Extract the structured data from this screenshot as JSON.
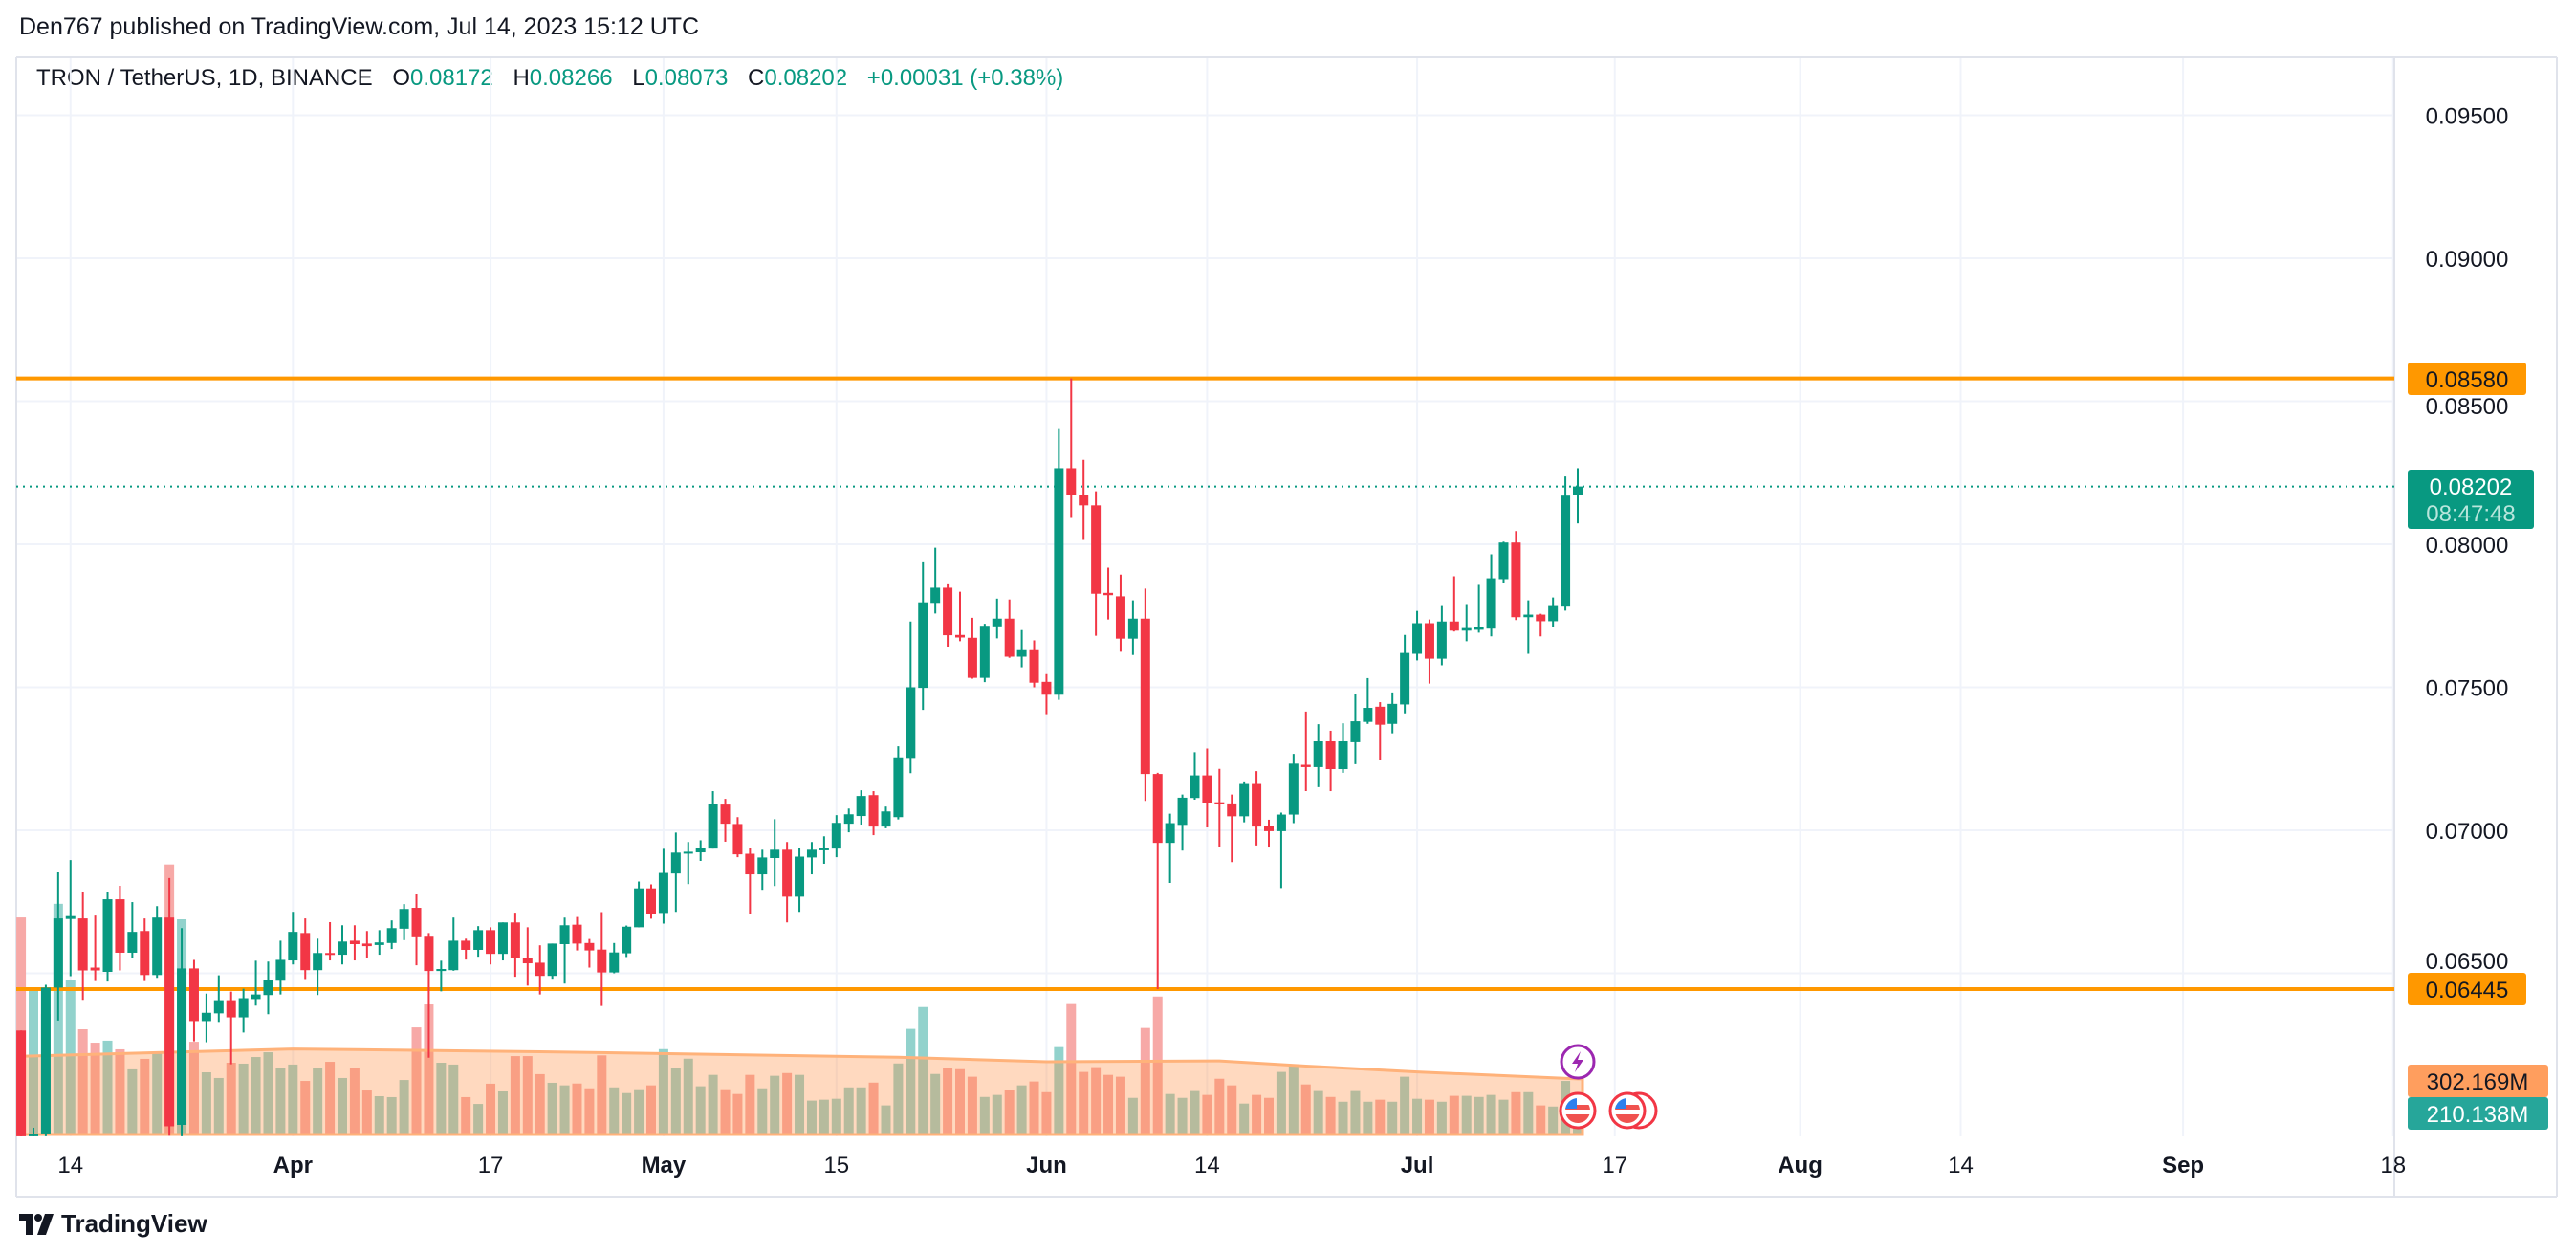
{
  "header": {
    "published": "Den767 published on TradingView.com, Jul 14, 2023 15:12 UTC"
  },
  "legend": {
    "symbol": "TRON / TetherUS, 1D, BINANCE",
    "open_label": "O",
    "open": "0.08172",
    "high_label": "H",
    "high": "0.08266",
    "low_label": "L",
    "low": "0.08073",
    "close_label": "C",
    "close": "0.08202",
    "change": "+0.00031 (+0.38%)"
  },
  "price_axis": {
    "ticks": [
      "0.09500",
      "0.09000",
      "0.08500",
      "0.08000",
      "0.07500",
      "0.07000",
      "0.06500"
    ],
    "resistance_label": "0.08580",
    "support_label": "0.06445",
    "last_price_label": "0.08202",
    "countdown_label": "08:47:48",
    "volume_ma_label": "302.169M",
    "volume_label": "210.138M"
  },
  "time_axis": {
    "ticks": [
      {
        "label": "14",
        "date": "2023-03-14",
        "bold": false
      },
      {
        "label": "Apr",
        "date": "2023-04-01",
        "bold": true
      },
      {
        "label": "17",
        "date": "2023-04-17",
        "bold": false
      },
      {
        "label": "May",
        "date": "2023-05-01",
        "bold": true
      },
      {
        "label": "15",
        "date": "2023-05-15",
        "bold": false
      },
      {
        "label": "Jun",
        "date": "2023-06-01",
        "bold": true
      },
      {
        "label": "14",
        "date": "2023-06-14",
        "bold": false
      },
      {
        "label": "Jul",
        "date": "2023-07-01",
        "bold": true
      },
      {
        "label": "17",
        "date": "2023-07-17",
        "bold": false
      },
      {
        "label": "Aug",
        "date": "2023-08-01",
        "bold": true
      },
      {
        "label": "14",
        "date": "2023-08-14",
        "bold": false
      },
      {
        "label": "Sep",
        "date": "2023-09-01",
        "bold": true
      },
      {
        "label": "18",
        "date": "2023-09-18",
        "bold": false
      }
    ]
  },
  "colors": {
    "up": "#089981",
    "down": "#f23645",
    "volume_up": "#92d2cc",
    "volume_down": "#f7a9a7",
    "level_line": "#ff9800",
    "volume_ma": "#ff9e5e",
    "volume_label": "#26a69a",
    "grid": "#f0f3fa",
    "text": "#131722"
  },
  "footer": {
    "brand": "TradingView",
    "logo_icon": "tradingview-logo-icon"
  },
  "event_icons": [
    "lightning-icon",
    "us-flag-icon",
    "us-flag-icon",
    "us-flag-icon"
  ],
  "chart_data": {
    "type": "candlestick",
    "title": "TRON / TetherUS, 1D, BINANCE",
    "ylim": [
      0.059,
      0.097
    ],
    "xlim": [
      "2023-03-10",
      "2023-09-25"
    ],
    "grid": true,
    "horizontal_levels": [
      0.0858,
      0.06445
    ],
    "last_price": 0.08202,
    "columns": [
      "date",
      "open",
      "high",
      "low",
      "close",
      "volume_M"
    ],
    "rows": [
      [
        "2023-03-10",
        0.063,
        0.063,
        0.059,
        0.0593,
        1180
      ],
      [
        "2023-03-11",
        0.0593,
        0.0596,
        0.0592,
        0.0594,
        800
      ],
      [
        "2023-03-12",
        0.0594,
        0.0646,
        0.0593,
        0.0645,
        655
      ],
      [
        "2023-03-13",
        0.0645,
        0.06853,
        0.06335,
        0.06692,
        1254
      ],
      [
        "2023-03-14",
        0.0669,
        0.06896,
        0.0649,
        0.067,
        841
      ],
      [
        "2023-03-15",
        0.06692,
        0.06783,
        0.06407,
        0.0651,
        572
      ],
      [
        "2023-03-16",
        0.0652,
        0.06702,
        0.06473,
        0.0651,
        499
      ],
      [
        "2023-03-17",
        0.06505,
        0.06783,
        0.06471,
        0.06759,
        510
      ],
      [
        "2023-03-18",
        0.06759,
        0.06806,
        0.0651,
        0.06572,
        463
      ],
      [
        "2023-03-19",
        0.06572,
        0.06749,
        0.06554,
        0.06645,
        354
      ],
      [
        "2023-03-20",
        0.06648,
        0.06692,
        0.06473,
        0.06494,
        411
      ],
      [
        "2023-03-21",
        0.06494,
        0.06735,
        0.06484,
        0.06695,
        442
      ],
      [
        "2023-03-22",
        0.06695,
        0.06833,
        0.05932,
        0.05965,
        1468
      ],
      [
        "2023-03-23",
        0.0597,
        0.06658,
        0.0593,
        0.06517,
        1170
      ],
      [
        "2023-03-24",
        0.06517,
        0.06547,
        0.06262,
        0.06333,
        504
      ],
      [
        "2023-03-25",
        0.06333,
        0.06429,
        0.06259,
        0.06362,
        338
      ],
      [
        "2023-03-26",
        0.0636,
        0.06493,
        0.0633,
        0.06406,
        307
      ],
      [
        "2023-03-27",
        0.06406,
        0.06436,
        0.06182,
        0.06346,
        390
      ],
      [
        "2023-03-28",
        0.06346,
        0.06446,
        0.06293,
        0.06413,
        385
      ],
      [
        "2023-03-29",
        0.0641,
        0.06544,
        0.06387,
        0.06426,
        421
      ],
      [
        "2023-03-30",
        0.06424,
        0.06541,
        0.06357,
        0.06477,
        447
      ],
      [
        "2023-03-31",
        0.06474,
        0.06614,
        0.06426,
        0.06547,
        364
      ],
      [
        "2023-04-01",
        0.06545,
        0.06715,
        0.06531,
        0.06645,
        380
      ],
      [
        "2023-04-02",
        0.06641,
        0.06692,
        0.0648,
        0.06511,
        291
      ],
      [
        "2023-04-03",
        0.06511,
        0.06621,
        0.06424,
        0.06571,
        359
      ],
      [
        "2023-04-04",
        0.06571,
        0.06679,
        0.06545,
        0.06565,
        395
      ],
      [
        "2023-04-05",
        0.06565,
        0.06668,
        0.06531,
        0.06611,
        307
      ],
      [
        "2023-04-06",
        0.06614,
        0.06668,
        0.06545,
        0.06602,
        359
      ],
      [
        "2023-04-07",
        0.06604,
        0.06648,
        0.06552,
        0.06595,
        239
      ],
      [
        "2023-04-08",
        0.06599,
        0.06651,
        0.06565,
        0.06608,
        208
      ],
      [
        "2023-04-09",
        0.06606,
        0.06685,
        0.06585,
        0.06658,
        203
      ],
      [
        "2023-04-10",
        0.06656,
        0.06742,
        0.06616,
        0.06725,
        296
      ],
      [
        "2023-04-11",
        0.06729,
        0.06776,
        0.06528,
        0.06626,
        582
      ],
      [
        "2023-04-12",
        0.06628,
        0.06641,
        0.06205,
        0.06508,
        707
      ],
      [
        "2023-04-13",
        0.06508,
        0.06544,
        0.06437,
        0.06515,
        390
      ],
      [
        "2023-04-14",
        0.06511,
        0.06695,
        0.06509,
        0.06614,
        380
      ],
      [
        "2023-04-15",
        0.06614,
        0.06621,
        0.06548,
        0.06582,
        203
      ],
      [
        "2023-04-16",
        0.06582,
        0.06665,
        0.06558,
        0.06651,
        166
      ],
      [
        "2023-04-17",
        0.06651,
        0.06661,
        0.06531,
        0.06568,
        276
      ],
      [
        "2023-04-18",
        0.06568,
        0.06678,
        0.06545,
        0.06678,
        234
      ],
      [
        "2023-04-19",
        0.06678,
        0.06712,
        0.06488,
        0.06555,
        426
      ],
      [
        "2023-04-20",
        0.06555,
        0.06661,
        0.06457,
        0.06535,
        426
      ],
      [
        "2023-04-21",
        0.06537,
        0.06598,
        0.06426,
        0.06491,
        328
      ],
      [
        "2023-04-22",
        0.06491,
        0.06604,
        0.06481,
        0.06604,
        281
      ],
      [
        "2023-04-23",
        0.06602,
        0.06695,
        0.06464,
        0.06668,
        267
      ],
      [
        "2023-04-24",
        0.0667,
        0.06697,
        0.0658,
        0.06604,
        277
      ],
      [
        "2023-04-25",
        0.06606,
        0.0662,
        0.0652,
        0.0658,
        251
      ],
      [
        "2023-04-26",
        0.06583,
        0.06714,
        0.06386,
        0.06503,
        430
      ],
      [
        "2023-04-27",
        0.06503,
        0.06606,
        0.065,
        0.06573,
        256
      ],
      [
        "2023-04-28",
        0.0657,
        0.06667,
        0.06557,
        0.06663,
        225
      ],
      [
        "2023-04-29",
        0.06661,
        0.06821,
        0.06661,
        0.06797,
        246
      ],
      [
        "2023-04-30",
        0.06797,
        0.06811,
        0.06691,
        0.06708,
        267
      ],
      [
        "2023-05-01",
        0.06711,
        0.06935,
        0.06674,
        0.06851,
        464
      ],
      [
        "2023-05-02",
        0.06849,
        0.06992,
        0.06715,
        0.06922,
        360
      ],
      [
        "2023-05-03",
        0.06922,
        0.06959,
        0.06812,
        0.06925,
        412
      ],
      [
        "2023-05-04",
        0.06923,
        0.06965,
        0.06893,
        0.06938,
        262
      ],
      [
        "2023-05-05",
        0.06936,
        0.07137,
        0.06936,
        0.07093,
        324
      ],
      [
        "2023-05-06",
        0.0709,
        0.0711,
        0.0696,
        0.07023,
        246
      ],
      [
        "2023-05-07",
        0.07022,
        0.07046,
        0.06906,
        0.06916,
        220
      ],
      [
        "2023-05-08",
        0.06918,
        0.06938,
        0.06708,
        0.06846,
        324
      ],
      [
        "2023-05-09",
        0.06846,
        0.06932,
        0.06792,
        0.06905,
        251
      ],
      [
        "2023-05-10",
        0.06903,
        0.07039,
        0.06805,
        0.06932,
        319
      ],
      [
        "2023-05-11",
        0.06932,
        0.06959,
        0.06678,
        0.06768,
        334
      ],
      [
        "2023-05-12",
        0.06768,
        0.06938,
        0.06715,
        0.06908,
        324
      ],
      [
        "2023-05-13",
        0.06905,
        0.06959,
        0.06846,
        0.06932,
        184
      ],
      [
        "2023-05-14",
        0.0693,
        0.06979,
        0.06883,
        0.06938,
        189
      ],
      [
        "2023-05-15",
        0.06936,
        0.07053,
        0.06906,
        0.07026,
        194
      ],
      [
        "2023-05-16",
        0.07023,
        0.07076,
        0.06993,
        0.07056,
        256
      ],
      [
        "2023-05-17",
        0.0705,
        0.0714,
        0.0702,
        0.0712,
        256
      ],
      [
        "2023-05-18",
        0.07123,
        0.07137,
        0.06983,
        0.07013,
        282
      ],
      [
        "2023-05-19",
        0.07013,
        0.07083,
        0.07007,
        0.07066,
        158
      ],
      [
        "2023-05-20",
        0.07046,
        0.07294,
        0.07038,
        0.07255,
        386
      ],
      [
        "2023-05-21",
        0.07253,
        0.0773,
        0.072,
        0.075,
        574
      ],
      [
        "2023-05-22",
        0.07498,
        0.07937,
        0.07421,
        0.07797,
        693
      ],
      [
        "2023-05-23",
        0.07795,
        0.07988,
        0.07758,
        0.07848,
        329
      ],
      [
        "2023-05-24",
        0.07848,
        0.0786,
        0.07642,
        0.07682,
        360
      ],
      [
        "2023-05-25",
        0.07683,
        0.07834,
        0.07661,
        0.07674,
        355
      ],
      [
        "2023-05-26",
        0.07673,
        0.07743,
        0.0753,
        0.07533,
        314
      ],
      [
        "2023-05-27",
        0.07533,
        0.07722,
        0.07518,
        0.07715,
        204
      ],
      [
        "2023-05-28",
        0.07713,
        0.0781,
        0.07671,
        0.0774,
        215
      ],
      [
        "2023-05-29",
        0.0774,
        0.07807,
        0.07603,
        0.07607,
        241
      ],
      [
        "2023-05-30",
        0.07607,
        0.077,
        0.0757,
        0.07633,
        267
      ],
      [
        "2023-05-31",
        0.07633,
        0.07664,
        0.075,
        0.07516,
        288
      ],
      [
        "2023-06-01",
        0.07519,
        0.07546,
        0.07406,
        0.07474,
        230
      ],
      [
        "2023-06-02",
        0.07474,
        0.08406,
        0.07456,
        0.08266,
        475
      ],
      [
        "2023-06-03",
        0.08266,
        0.0858,
        0.08092,
        0.08173,
        709
      ],
      [
        "2023-06-04",
        0.08173,
        0.08295,
        0.08015,
        0.08136,
        340
      ],
      [
        "2023-06-05",
        0.08136,
        0.08185,
        0.0768,
        0.07827,
        366
      ],
      [
        "2023-06-06",
        0.0783,
        0.07918,
        0.07737,
        0.07822,
        324
      ],
      [
        "2023-06-07",
        0.07818,
        0.07894,
        0.07624,
        0.0767,
        314
      ],
      [
        "2023-06-08",
        0.0767,
        0.07804,
        0.07613,
        0.0774,
        199
      ],
      [
        "2023-06-09",
        0.0774,
        0.07845,
        0.07103,
        0.07197,
        579
      ],
      [
        "2023-06-10",
        0.07197,
        0.07201,
        0.06445,
        0.06956,
        750
      ],
      [
        "2023-06-11",
        0.06956,
        0.07058,
        0.06816,
        0.07025,
        220
      ],
      [
        "2023-06-12",
        0.07019,
        0.07125,
        0.06929,
        0.07114,
        199
      ],
      [
        "2023-06-13",
        0.07113,
        0.07273,
        0.07107,
        0.07192,
        236
      ],
      [
        "2023-06-14",
        0.07192,
        0.07286,
        0.0701,
        0.07097,
        215
      ],
      [
        "2023-06-15",
        0.07098,
        0.07215,
        0.06943,
        0.07094,
        303
      ],
      [
        "2023-06-16",
        0.07094,
        0.07125,
        0.06889,
        0.07049,
        267
      ],
      [
        "2023-06-17",
        0.07049,
        0.07171,
        0.07028,
        0.07162,
        168
      ],
      [
        "2023-06-18",
        0.07162,
        0.07207,
        0.06947,
        0.07013,
        215
      ],
      [
        "2023-06-19",
        0.07014,
        0.07037,
        0.06943,
        0.06997,
        199
      ],
      [
        "2023-06-20",
        0.06997,
        0.07062,
        0.06798,
        0.07055,
        340
      ],
      [
        "2023-06-21",
        0.07055,
        0.07267,
        0.07025,
        0.07233,
        371
      ],
      [
        "2023-06-22",
        0.07229,
        0.07415,
        0.07137,
        0.07221,
        272
      ],
      [
        "2023-06-23",
        0.07221,
        0.07371,
        0.07151,
        0.07311,
        236
      ],
      [
        "2023-06-24",
        0.07311,
        0.07348,
        0.07137,
        0.07214,
        204
      ],
      [
        "2023-06-25",
        0.07214,
        0.07374,
        0.07201,
        0.07311,
        178
      ],
      [
        "2023-06-26",
        0.07308,
        0.07475,
        0.07231,
        0.07381,
        236
      ],
      [
        "2023-06-27",
        0.07379,
        0.07532,
        0.07372,
        0.07428,
        178
      ],
      [
        "2023-06-28",
        0.07432,
        0.07448,
        0.07245,
        0.07369,
        189
      ],
      [
        "2023-06-29",
        0.07372,
        0.07482,
        0.07339,
        0.07442,
        178
      ],
      [
        "2023-06-30",
        0.0744,
        0.07683,
        0.07409,
        0.0762,
        314
      ],
      [
        "2023-07-01",
        0.07617,
        0.07767,
        0.07594,
        0.07724,
        194
      ],
      [
        "2023-07-02",
        0.07724,
        0.07737,
        0.07513,
        0.076,
        189
      ],
      [
        "2023-07-03",
        0.076,
        0.07784,
        0.07577,
        0.0773,
        178
      ],
      [
        "2023-07-04",
        0.0773,
        0.07888,
        0.07695,
        0.07698,
        210
      ],
      [
        "2023-07-05",
        0.07698,
        0.07791,
        0.07661,
        0.07707,
        210
      ],
      [
        "2023-07-06",
        0.07701,
        0.07858,
        0.07691,
        0.0771,
        204
      ],
      [
        "2023-07-07",
        0.07705,
        0.07965,
        0.07678,
        0.07881,
        215
      ],
      [
        "2023-07-08",
        0.07878,
        0.08009,
        0.07866,
        0.08006,
        189
      ],
      [
        "2023-07-09",
        0.08006,
        0.08046,
        0.07735,
        0.07745,
        230
      ],
      [
        "2023-07-10",
        0.07745,
        0.07804,
        0.07617,
        0.07754,
        230
      ],
      [
        "2023-07-11",
        0.07754,
        0.07757,
        0.07678,
        0.07731,
        158
      ],
      [
        "2023-07-12",
        0.07731,
        0.07814,
        0.07711,
        0.07784,
        152
      ],
      [
        "2023-07-13",
        0.07782,
        0.08237,
        0.07768,
        0.0817,
        291
      ],
      [
        "2023-07-14",
        0.08172,
        0.08266,
        0.08073,
        0.08202,
        210.138
      ]
    ],
    "volume_ma": [
      [
        "2023-03-10",
        425
      ],
      [
        "2023-04-01",
        465
      ],
      [
        "2023-04-21",
        450
      ],
      [
        "2023-05-20",
        420
      ],
      [
        "2023-06-01",
        395
      ],
      [
        "2023-06-15",
        400
      ],
      [
        "2023-06-22",
        372
      ],
      [
        "2023-07-01",
        340
      ],
      [
        "2023-07-14",
        302.169
      ]
    ]
  }
}
